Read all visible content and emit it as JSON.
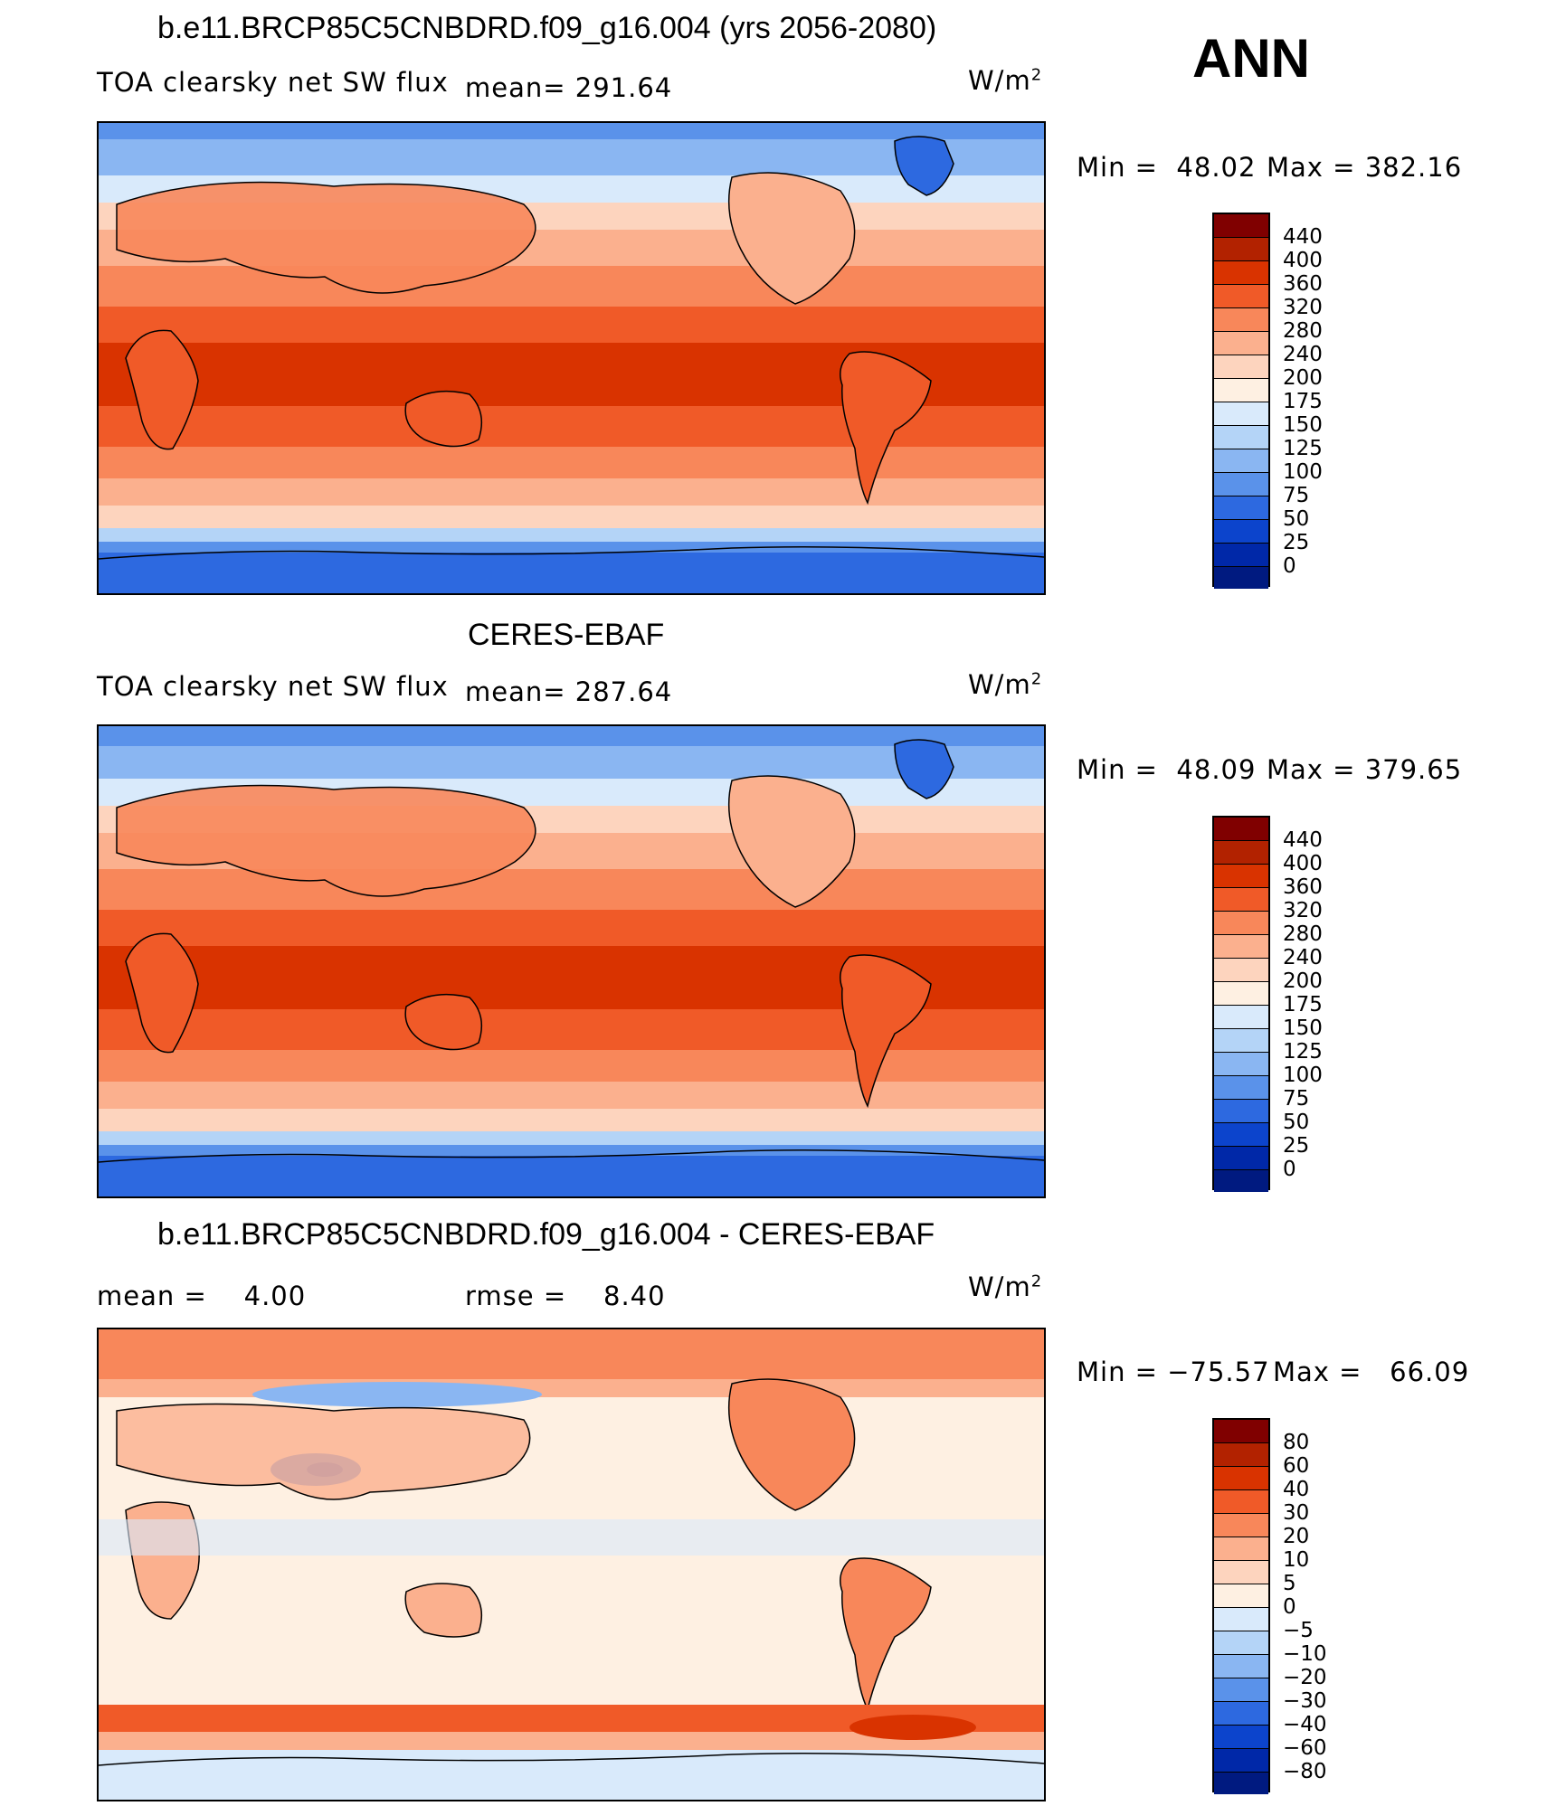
{
  "season_label": "ANN",
  "units_label": "W/m",
  "units_exponent": "2",
  "panels": [
    {
      "title": "b.e11.BRCP85C5CNBDRD.f09_g16.004 (yrs 2056-2080)",
      "variable": "TOA clearsky net SW flux",
      "mean_text": "mean= 291.64",
      "min_text": "Min =  48.02",
      "max_text": "Max = 382.16",
      "colorbar_labels": [
        "440",
        "400",
        "360",
        "320",
        "280",
        "240",
        "200",
        "175",
        "150",
        "125",
        "100",
        "75",
        "50",
        "25",
        "0"
      ]
    },
    {
      "title": "CERES-EBAF",
      "variable": "TOA clearsky net SW flux",
      "mean_text": "mean= 287.64",
      "min_text": "Min =  48.09",
      "max_text": "Max = 379.65",
      "colorbar_labels": [
        "440",
        "400",
        "360",
        "320",
        "280",
        "240",
        "200",
        "175",
        "150",
        "125",
        "100",
        "75",
        "50",
        "25",
        "0"
      ]
    },
    {
      "title": "b.e11.BRCP85C5CNBDRD.f09_g16.004 - CERES-EBAF",
      "mean_text": "mean =    4.00",
      "rmse_text": "rmse =    8.40",
      "min_text": "Min = −75.57",
      "max_text": "Max =   66.09",
      "colorbar_labels": [
        "80",
        "60",
        "40",
        "30",
        "20",
        "10",
        "5",
        "0",
        "−5",
        "−10",
        "−20",
        "−30",
        "−40",
        "−60",
        "−80"
      ]
    }
  ],
  "colors": {
    "field_scale": [
      "#800000",
      "#b22200",
      "#d93300",
      "#f05a28",
      "#f8875a",
      "#fbb08e",
      "#fdd4be",
      "#fef0e2",
      "#d9eafb",
      "#b4d4f7",
      "#8ab6f2",
      "#5a92ea",
      "#2d69e0",
      "#0c44cc",
      "#0028a8",
      "#001a80"
    ],
    "diff_scale": [
      "#800000",
      "#b22200",
      "#d93300",
      "#f05a28",
      "#f8875a",
      "#fbb08e",
      "#fdd4be",
      "#fef0e2",
      "#d9eafb",
      "#b4d4f7",
      "#8ab6f2",
      "#5a92ea",
      "#2d69e0",
      "#0c44cc",
      "#0028a8",
      "#001a80"
    ]
  }
}
